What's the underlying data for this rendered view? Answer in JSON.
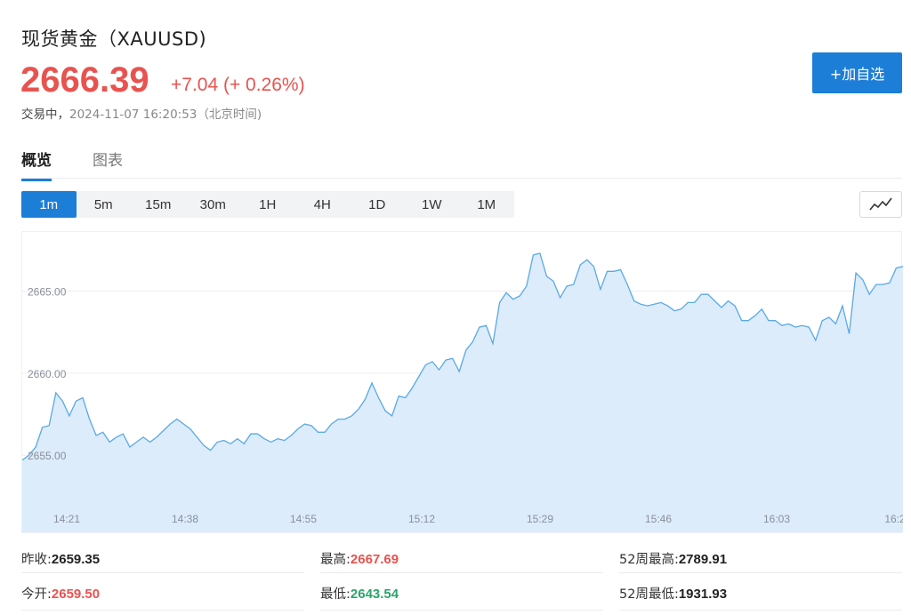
{
  "header": {
    "title": "现货黄金（XAUUSD)",
    "price": "2666.39",
    "change": "+7.04 (+ 0.26%)",
    "status": "交易中，",
    "timestamp": "2024-11-07 16:20:53（北京时间)",
    "add_button": "+加自选"
  },
  "tabs": [
    {
      "label": "概览",
      "active": true
    },
    {
      "label": "图表",
      "active": false
    }
  ],
  "timeframes": [
    "1m",
    "5m",
    "15m",
    "30m",
    "1H",
    "4H",
    "1D",
    "1W",
    "1M"
  ],
  "active_timeframe": "1m",
  "chart_type_icon": "line-chart-icon",
  "colors": {
    "up": "#e8534f",
    "down": "#2ba36c",
    "accent": "#1d7ed7",
    "line": "#5aa9e6",
    "fill": "#dcecfb"
  },
  "chart_data": {
    "type": "area",
    "title": "",
    "xlabel": "",
    "ylabel": "",
    "y_ticks": [
      "2665.00",
      "2660.00",
      "2655.00"
    ],
    "y_tick_values": [
      2665,
      2660,
      2655
    ],
    "x_ticks": [
      "14:21",
      "14:38",
      "14:55",
      "15:12",
      "15:29",
      "15:46",
      "16:03",
      "16:2"
    ],
    "ylim": [
      2650.3,
      2668.6
    ],
    "grid": true,
    "values": [
      2654.7,
      2655.0,
      2655.5,
      2656.7,
      2656.8,
      2658.8,
      2658.3,
      2657.4,
      2658.3,
      2658.5,
      2657.2,
      2656.2,
      2656.4,
      2655.8,
      2656.1,
      2656.3,
      2655.5,
      2655.8,
      2656.1,
      2655.8,
      2656.1,
      2656.5,
      2656.9,
      2657.2,
      2656.9,
      2656.6,
      2656.1,
      2655.6,
      2655.3,
      2655.8,
      2655.9,
      2655.7,
      2656.0,
      2655.7,
      2656.3,
      2656.3,
      2656.0,
      2655.8,
      2656.0,
      2655.9,
      2656.2,
      2656.6,
      2656.9,
      2656.8,
      2656.4,
      2656.4,
      2656.9,
      2657.2,
      2657.2,
      2657.4,
      2657.8,
      2658.4,
      2659.4,
      2658.5,
      2657.7,
      2657.4,
      2658.6,
      2658.5,
      2659.1,
      2659.8,
      2660.5,
      2660.7,
      2660.2,
      2660.8,
      2660.9,
      2660.1,
      2661.4,
      2661.9,
      2662.8,
      2662.9,
      2661.8,
      2664.3,
      2664.9,
      2664.5,
      2664.7,
      2665.3,
      2667.2,
      2667.3,
      2665.9,
      2665.6,
      2664.6,
      2665.3,
      2665.4,
      2666.6,
      2666.9,
      2666.5,
      2665.1,
      2666.2,
      2666.2,
      2666.3,
      2665.4,
      2664.4,
      2664.2,
      2664.1,
      2664.2,
      2664.3,
      2664.1,
      2663.8,
      2663.9,
      2664.3,
      2664.3,
      2664.8,
      2664.8,
      2664.4,
      2664.0,
      2664.4,
      2664.1,
      2663.2,
      2663.2,
      2663.5,
      2663.9,
      2663.2,
      2663.2,
      2662.9,
      2663.0,
      2662.8,
      2662.9,
      2662.8,
      2662.0,
      2663.2,
      2663.4,
      2663.0,
      2664.1,
      2662.4,
      2666.1,
      2665.7,
      2664.8,
      2665.4,
      2665.4,
      2665.5,
      2666.4,
      2666.5
    ]
  },
  "stats": {
    "prev_close_label": "昨收:",
    "prev_close": "2659.35",
    "high_label": "最高:",
    "high": "2667.69",
    "week52_high_label": "52周最高:",
    "week52_high": "2789.91",
    "open_label": "今开:",
    "open": "2659.50",
    "low_label": "最低:",
    "low": "2643.54",
    "week52_low_label": "52周最低:",
    "week52_low": "1931.93"
  }
}
